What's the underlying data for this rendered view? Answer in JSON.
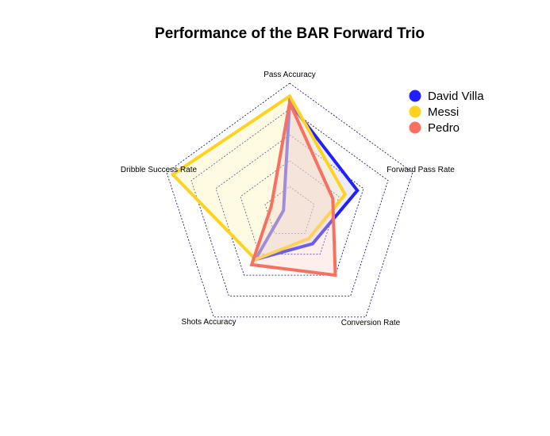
{
  "chart_data": {
    "type": "radar",
    "title": "Performance of the BAR Forward Trio",
    "axes": [
      "Pass Accuracy",
      "Forward Pass Rate",
      "Conversion Rate",
      "Shots Accuracy",
      "Dribble Success Rate"
    ],
    "range": [
      0,
      1
    ],
    "grid_levels": 5,
    "legend_position": "top-right",
    "series": [
      {
        "name": "David Villa",
        "color": "#2020ff",
        "fill": "#c8c8ff",
        "values": [
          0.85,
          0.55,
          0.3,
          0.45,
          0.05
        ]
      },
      {
        "name": "Messi",
        "color": "#ffd21e",
        "fill": "#fff3b0",
        "values": [
          0.9,
          0.45,
          0.25,
          0.45,
          0.95
        ]
      },
      {
        "name": "Pedro",
        "color": "#f87060",
        "fill": "#fcd2c8",
        "values": [
          0.85,
          0.35,
          0.6,
          0.5,
          0.15
        ]
      }
    ]
  }
}
